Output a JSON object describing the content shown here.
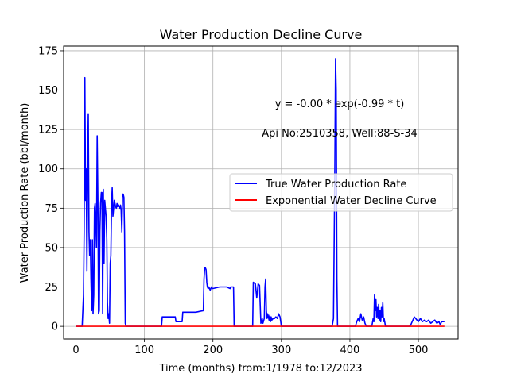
{
  "chart_data": {
    "type": "line",
    "title": "Water Production Decline Curve",
    "xlabel": "Time (months) from:1/1978 to:12/2023",
    "ylabel": "Water Production Rate (bbl/month)",
    "xlim": [
      -18,
      558
    ],
    "ylim": [
      -8,
      178
    ],
    "xticks": [
      0,
      100,
      200,
      300,
      400,
      500
    ],
    "yticks": [
      0,
      25,
      50,
      75,
      100,
      125,
      150,
      175
    ],
    "grid": true,
    "legend_position": "center-right",
    "annotations": [
      "y = -0.00 * exp(-0.99 * t)",
      "Api No:2510358, Well:88-S-34"
    ],
    "series": [
      {
        "name": "True Water Production Rate",
        "color": "#0000ff",
        "x": [
          0,
          9,
          11,
          12,
          13,
          14,
          15,
          16,
          17,
          18,
          19,
          20,
          21,
          22,
          23,
          24,
          25,
          26,
          27,
          28,
          29,
          30,
          31,
          32,
          33,
          34,
          35,
          36,
          37,
          38,
          39,
          40,
          41,
          42,
          43,
          44,
          45,
          46,
          47,
          48,
          49,
          50,
          51,
          52,
          53,
          54,
          55,
          56,
          57,
          58,
          59,
          60,
          61,
          62,
          63,
          64,
          65,
          66,
          67,
          68,
          69,
          70,
          71,
          72,
          73,
          74,
          75,
          76,
          77,
          78,
          79,
          80,
          81,
          82,
          83,
          84,
          90,
          100,
          120,
          125,
          126,
          145,
          146,
          155,
          156,
          164,
          165,
          175,
          186,
          187,
          188,
          189,
          190,
          191,
          192,
          193,
          194,
          195,
          196,
          197,
          198,
          199,
          200,
          210,
          220,
          225,
          226,
          230,
          231,
          258,
          259,
          262,
          264,
          266,
          268,
          270,
          271,
          272,
          273,
          275,
          276,
          277,
          278,
          279,
          280,
          281,
          282,
          283,
          284,
          285,
          286,
          288,
          290,
          292,
          294,
          296,
          298,
          300,
          302,
          370,
          374,
          376,
          378,
          379,
          380,
          381,
          382,
          383,
          384,
          390,
          400,
          408,
          410,
          412,
          414,
          416,
          418,
          420,
          422,
          424,
          426,
          428,
          432,
          434,
          435,
          436,
          437,
          438,
          439,
          440,
          441,
          442,
          443,
          444,
          445,
          446,
          447,
          448,
          449,
          450,
          452,
          470,
          480,
          485,
          487,
          489,
          490,
          492,
          494,
          496,
          498,
          500,
          503,
          506,
          509,
          512,
          515,
          518,
          521,
          524,
          527,
          530,
          532,
          534,
          536,
          538
        ],
        "y": [
          0,
          0,
          20,
          60,
          158,
          80,
          100,
          35,
          95,
          135,
          60,
          45,
          55,
          30,
          10,
          55,
          8,
          20,
          75,
          78,
          65,
          50,
          121,
          80,
          8,
          10,
          60,
          78,
          85,
          85,
          8,
          87,
          40,
          80,
          75,
          70,
          55,
          15,
          5,
          8,
          2,
          40,
          45,
          78,
          88,
          70,
          75,
          80,
          78,
          76,
          75,
          78,
          76,
          77,
          76,
          75,
          77,
          74,
          60,
          84,
          84,
          82,
          60,
          2,
          0,
          0,
          0,
          0,
          0,
          0,
          0,
          0,
          0,
          0,
          0,
          0,
          0,
          0,
          0,
          0,
          6,
          6,
          3,
          3,
          9,
          9,
          9,
          9,
          10,
          30,
          37,
          37,
          36,
          28,
          25,
          24,
          25,
          24,
          23,
          24,
          25,
          24,
          24,
          25,
          25,
          24,
          25,
          25,
          0,
          0,
          28,
          27,
          18,
          27,
          26,
          2,
          3,
          5,
          2,
          5,
          25,
          30,
          10,
          5,
          8,
          6,
          4,
          7,
          3,
          6,
          4,
          5,
          5,
          6,
          5,
          8,
          6,
          0,
          0,
          0,
          0,
          5,
          100,
          170,
          150,
          30,
          0,
          0,
          0,
          0,
          0,
          0,
          3,
          5,
          3,
          8,
          4,
          6,
          2,
          0,
          0,
          0,
          0,
          5,
          3,
          20,
          10,
          17,
          6,
          12,
          5,
          14,
          4,
          10,
          3,
          12,
          6,
          15,
          3,
          5,
          0,
          0,
          0,
          0,
          0,
          1,
          2,
          4,
          6,
          5,
          4,
          3,
          5,
          3,
          4,
          3,
          4,
          2,
          3,
          4,
          2,
          3,
          1,
          3,
          3,
          3
        ],
        "values_approximate": true
      },
      {
        "name": "Exponential Water Decline Curve",
        "color": "#ff0000",
        "x": [
          0,
          538
        ],
        "y": [
          0,
          0
        ]
      }
    ]
  }
}
